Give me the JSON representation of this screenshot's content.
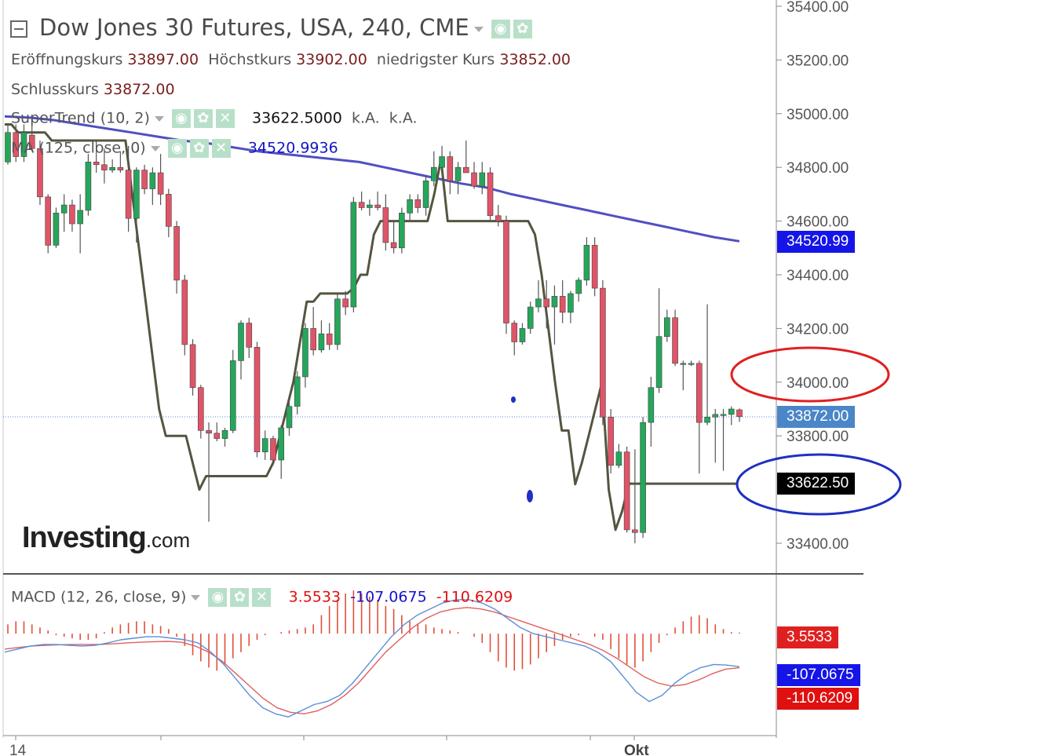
{
  "header": {
    "title": "Dow Jones 30 Futures, USA, 240, CME",
    "ohlc": {
      "open_label": "Eröffnungskurs",
      "open_value": "33897.00",
      "high_label": "Höchstkurs",
      "high_value": "33902.00",
      "low_label": "niedrigster Kurs",
      "low_value": "33852.00",
      "close_label": "Schlusskurs",
      "close_value": "33872.00"
    },
    "supertrend": {
      "label": "SuperTrend (10, 2)",
      "value": "33622.5000",
      "extra1": "k.A.",
      "extra2": "k.A."
    },
    "ma": {
      "label": "MA (125, close, 0)",
      "value": "34520.9936"
    },
    "macd": {
      "label": "MACD (12, 26, close, 9)",
      "hist": "3.5533",
      "macd": "-107.0675",
      "signal": "-110.6209"
    }
  },
  "logo": {
    "main": "Investing",
    "suffix": ".com"
  },
  "price_tags": {
    "ma": "34520.99",
    "close": "33872.00",
    "supertrend": "33622.50",
    "hist": "3.5533",
    "macd": "-107.0675",
    "signal": "-110.6209"
  },
  "colors": {
    "up": "#26a65b",
    "down": "#e05468",
    "ma": "#5050c0",
    "supertrend": "#555540",
    "macd_line": "#5b8fd8",
    "signal_line": "#e06060",
    "hist": "#e05038",
    "close_tag": "#4a86c8",
    "ma_tag": "#1515e8",
    "st_tag": "#000000",
    "hist_tag": "#e02020",
    "macd_tag": "#1515e8",
    "signal_tag": "#e01010",
    "annot_red": "#e02020",
    "annot_blue": "#2030c0"
  },
  "chart_data": [
    {
      "type": "candlestick",
      "ylim": [
        33300,
        35400
      ],
      "yticks": [
        "35400.00",
        "35200.00",
        "35000.00",
        "34800.00",
        "34600.00",
        "34400.00",
        "34200.00",
        "34000.00",
        "33800.00",
        "33400.00"
      ],
      "xtick_labels": [
        "14",
        "Okt"
      ],
      "candles": [
        {
          "o": 34820,
          "h": 34960,
          "l": 34810,
          "c": 34930
        },
        {
          "o": 34930,
          "h": 34960,
          "l": 34820,
          "c": 34840
        },
        {
          "o": 34840,
          "h": 34960,
          "l": 34820,
          "c": 34930
        },
        {
          "o": 34920,
          "h": 34980,
          "l": 34860,
          "c": 34870
        },
        {
          "o": 34870,
          "h": 34900,
          "l": 34660,
          "c": 34690
        },
        {
          "o": 34690,
          "h": 34700,
          "l": 34480,
          "c": 34510
        },
        {
          "o": 34510,
          "h": 34650,
          "l": 34500,
          "c": 34630
        },
        {
          "o": 34630,
          "h": 34700,
          "l": 34560,
          "c": 34660
        },
        {
          "o": 34660,
          "h": 34680,
          "l": 34560,
          "c": 34590
        },
        {
          "o": 34590,
          "h": 34700,
          "l": 34480,
          "c": 34640
        },
        {
          "o": 34640,
          "h": 34850,
          "l": 34620,
          "c": 34820
        },
        {
          "o": 34820,
          "h": 34900,
          "l": 34780,
          "c": 34810
        },
        {
          "o": 34810,
          "h": 34870,
          "l": 34740,
          "c": 34790
        },
        {
          "o": 34790,
          "h": 34830,
          "l": 34780,
          "c": 34800
        },
        {
          "o": 34800,
          "h": 34860,
          "l": 34780,
          "c": 34790
        },
        {
          "o": 34790,
          "h": 34880,
          "l": 34560,
          "c": 34610
        },
        {
          "o": 34610,
          "h": 34800,
          "l": 34520,
          "c": 34790
        },
        {
          "o": 34790,
          "h": 34810,
          "l": 34700,
          "c": 34720
        },
        {
          "o": 34720,
          "h": 34800,
          "l": 34660,
          "c": 34780
        },
        {
          "o": 34780,
          "h": 34850,
          "l": 34660,
          "c": 34700
        },
        {
          "o": 34700,
          "h": 34720,
          "l": 34540,
          "c": 34580
        },
        {
          "o": 34580,
          "h": 34600,
          "l": 34330,
          "c": 34380
        },
        {
          "o": 34380,
          "h": 34400,
          "l": 34100,
          "c": 34140
        },
        {
          "o": 34140,
          "h": 34160,
          "l": 33950,
          "c": 33980
        },
        {
          "o": 33980,
          "h": 33990,
          "l": 33790,
          "c": 33820
        },
        {
          "o": 33820,
          "h": 33850,
          "l": 33480,
          "c": 33810
        },
        {
          "o": 33810,
          "h": 33850,
          "l": 33780,
          "c": 33790
        },
        {
          "o": 33790,
          "h": 33830,
          "l": 33760,
          "c": 33820
        },
        {
          "o": 33820,
          "h": 34120,
          "l": 33810,
          "c": 34080
        },
        {
          "o": 34080,
          "h": 34230,
          "l": 34010,
          "c": 34220
        },
        {
          "o": 34220,
          "h": 34240,
          "l": 34090,
          "c": 34130
        },
        {
          "o": 34130,
          "h": 34150,
          "l": 33720,
          "c": 33740
        },
        {
          "o": 33740,
          "h": 33820,
          "l": 33710,
          "c": 33790
        },
        {
          "o": 33790,
          "h": 33800,
          "l": 33690,
          "c": 33710
        },
        {
          "o": 33710,
          "h": 33840,
          "l": 33640,
          "c": 33830
        },
        {
          "o": 33830,
          "h": 33930,
          "l": 33800,
          "c": 33910
        },
        {
          "o": 33910,
          "h": 34040,
          "l": 33880,
          "c": 34020
        },
        {
          "o": 34020,
          "h": 34220,
          "l": 33980,
          "c": 34200
        },
        {
          "o": 34200,
          "h": 34280,
          "l": 34100,
          "c": 34120
        },
        {
          "o": 34120,
          "h": 34230,
          "l": 34110,
          "c": 34180
        },
        {
          "o": 34180,
          "h": 34220,
          "l": 34120,
          "c": 34140
        },
        {
          "o": 34140,
          "h": 34330,
          "l": 34120,
          "c": 34310
        },
        {
          "o": 34310,
          "h": 34340,
          "l": 34250,
          "c": 34280
        },
        {
          "o": 34280,
          "h": 34690,
          "l": 34260,
          "c": 34670
        },
        {
          "o": 34670,
          "h": 34710,
          "l": 34640,
          "c": 34650
        },
        {
          "o": 34650,
          "h": 34680,
          "l": 34620,
          "c": 34660
        },
        {
          "o": 34660,
          "h": 34710,
          "l": 34640,
          "c": 34650
        },
        {
          "o": 34650,
          "h": 34700,
          "l": 34490,
          "c": 34520
        },
        {
          "o": 34520,
          "h": 34600,
          "l": 34480,
          "c": 34500
        },
        {
          "o": 34500,
          "h": 34650,
          "l": 34480,
          "c": 34630
        },
        {
          "o": 34630,
          "h": 34700,
          "l": 34600,
          "c": 34680
        },
        {
          "o": 34680,
          "h": 34700,
          "l": 34630,
          "c": 34650
        },
        {
          "o": 34650,
          "h": 34770,
          "l": 34620,
          "c": 34750
        },
        {
          "o": 34750,
          "h": 34860,
          "l": 34730,
          "c": 34800
        },
        {
          "o": 34800,
          "h": 34880,
          "l": 34790,
          "c": 34840
        },
        {
          "o": 34840,
          "h": 34860,
          "l": 34700,
          "c": 34750
        },
        {
          "o": 34750,
          "h": 34820,
          "l": 34700,
          "c": 34800
        },
        {
          "o": 34800,
          "h": 34900,
          "l": 34780,
          "c": 34780
        },
        {
          "o": 34780,
          "h": 34820,
          "l": 34720,
          "c": 34730
        },
        {
          "o": 34730,
          "h": 34820,
          "l": 34700,
          "c": 34780
        },
        {
          "o": 34780,
          "h": 34800,
          "l": 34600,
          "c": 34620
        },
        {
          "o": 34620,
          "h": 34660,
          "l": 34580,
          "c": 34600
        },
        {
          "o": 34600,
          "h": 34620,
          "l": 34180,
          "c": 34220
        },
        {
          "o": 34220,
          "h": 34230,
          "l": 34100,
          "c": 34150
        },
        {
          "o": 34150,
          "h": 34220,
          "l": 34140,
          "c": 34200
        },
        {
          "o": 34200,
          "h": 34300,
          "l": 34180,
          "c": 34280
        },
        {
          "o": 34280,
          "h": 34380,
          "l": 34260,
          "c": 34310
        },
        {
          "o": 34310,
          "h": 34380,
          "l": 34200,
          "c": 34280
        },
        {
          "o": 34280,
          "h": 34360,
          "l": 34140,
          "c": 34320
        },
        {
          "o": 34320,
          "h": 34380,
          "l": 34220,
          "c": 34260
        },
        {
          "o": 34260,
          "h": 34340,
          "l": 34220,
          "c": 34330
        },
        {
          "o": 34330,
          "h": 34390,
          "l": 34300,
          "c": 34380
        },
        {
          "o": 34380,
          "h": 34540,
          "l": 34360,
          "c": 34510
        },
        {
          "o": 34510,
          "h": 34540,
          "l": 34320,
          "c": 34350
        },
        {
          "o": 34350,
          "h": 34380,
          "l": 33840,
          "c": 33870
        },
        {
          "o": 33870,
          "h": 33900,
          "l": 33660,
          "c": 33690
        },
        {
          "o": 33690,
          "h": 33770,
          "l": 33680,
          "c": 33740
        },
        {
          "o": 33740,
          "h": 33760,
          "l": 33440,
          "c": 33450
        },
        {
          "o": 33450,
          "h": 33750,
          "l": 33400,
          "c": 33440
        },
        {
          "o": 33440,
          "h": 33870,
          "l": 33420,
          "c": 33850
        },
        {
          "o": 33850,
          "h": 34020,
          "l": 33760,
          "c": 33980
        },
        {
          "o": 33980,
          "h": 34350,
          "l": 33960,
          "c": 34170
        },
        {
          "o": 34170,
          "h": 34270,
          "l": 34150,
          "c": 34240
        },
        {
          "o": 34240,
          "h": 34270,
          "l": 34060,
          "c": 34070
        },
        {
          "o": 34070,
          "h": 34080,
          "l": 33970,
          "c": 34070
        },
        {
          "o": 34070,
          "h": 34080,
          "l": 34060,
          "c": 34070
        },
        {
          "o": 34070,
          "h": 34080,
          "l": 33660,
          "c": 33850
        },
        {
          "o": 33850,
          "h": 34290,
          "l": 33840,
          "c": 33870
        },
        {
          "o": 33870,
          "h": 33900,
          "l": 33700,
          "c": 33880
        },
        {
          "o": 33880,
          "h": 33900,
          "l": 33670,
          "c": 33880
        },
        {
          "o": 33880,
          "h": 33910,
          "l": 33840,
          "c": 33900
        },
        {
          "o": 33897,
          "h": 33902,
          "l": 33852,
          "c": 33872
        }
      ],
      "ma": [
        34990,
        34985,
        34975,
        34960,
        34945,
        34930,
        34915,
        34900,
        34890,
        34875,
        34860,
        34850,
        34840,
        34830,
        34820,
        34800,
        34780,
        34760,
        34740,
        34725,
        34700,
        34680,
        34660,
        34640,
        34620,
        34600,
        34580,
        34560,
        34540,
        34525
      ],
      "supertrend": [
        34960,
        34960,
        34930,
        34930,
        34930,
        34930,
        34930,
        34900,
        34900,
        34900,
        34900,
        34900,
        34900,
        34900,
        34900,
        34900,
        34900,
        34900,
        34900,
        34700,
        34500,
        34300,
        34100,
        33900,
        33800,
        33800,
        33800,
        33800,
        33700,
        33600,
        33650,
        33650,
        33650,
        33650,
        33650,
        33650,
        33650,
        33650,
        33650,
        33650,
        33700,
        33800,
        33900,
        34000,
        34150,
        34300,
        34300,
        34330,
        34330,
        34330,
        34330,
        34330,
        34350,
        34400,
        34400,
        34550,
        34600,
        34600,
        34600,
        34600,
        34600,
        34600,
        34600,
        34600,
        34700,
        34830,
        34600,
        34600,
        34600,
        34600,
        34600,
        34600,
        34600,
        34600,
        34600,
        34600,
        34600,
        34600,
        34600,
        34550,
        34400,
        34200,
        34000,
        33820,
        33820,
        33620,
        33700,
        33800,
        33900,
        34000,
        33600,
        33450,
        33520,
        33622,
        33622,
        33622,
        33622,
        33622,
        33622,
        33622,
        33622,
        33622,
        33622,
        33622,
        33622,
        33622,
        33622,
        33622,
        33622,
        33622
      ]
    },
    {
      "type": "macd",
      "ylim": [
        -300,
        200
      ],
      "histogram": [
        30,
        40,
        40,
        30,
        20,
        10,
        -5,
        -10,
        -15,
        -20,
        -20,
        -15,
        5,
        20,
        30,
        35,
        40,
        40,
        30,
        25,
        15,
        -10,
        -40,
        -70,
        -90,
        -110,
        -120,
        -100,
        -80,
        -60,
        -40,
        -20,
        -5,
        0,
        5,
        10,
        15,
        20,
        30,
        60,
        90,
        110,
        130,
        140,
        130,
        120,
        110,
        90,
        80,
        60,
        40,
        30,
        30,
        20,
        15,
        10,
        5,
        0,
        -10,
        -30,
        -60,
        -90,
        -110,
        -120,
        -115,
        -100,
        -80,
        -60,
        -40,
        -20,
        -10,
        -5,
        0,
        -10,
        -20,
        -50,
        -80,
        -100,
        -110,
        -90,
        -60,
        -30,
        -5,
        20,
        40,
        55,
        60,
        50,
        30,
        15,
        5,
        3.5533
      ],
      "macd": [
        -60,
        -50,
        -40,
        -35,
        -35,
        -38,
        -40,
        -38,
        -30,
        -20,
        -15,
        -10,
        -10,
        -15,
        -20,
        -30,
        -60,
        -100,
        -150,
        -200,
        -240,
        -260,
        -270,
        -250,
        -230,
        -220,
        -200,
        -160,
        -110,
        -60,
        -10,
        30,
        60,
        80,
        100,
        110,
        110,
        100,
        80,
        50,
        20,
        0,
        -10,
        -20,
        -30,
        -40,
        -60,
        -90,
        -140,
        -190,
        -220,
        -200,
        -160,
        -130,
        -110,
        -100,
        -102,
        -107.0675
      ],
      "signal": [
        -50,
        -45,
        -40,
        -38,
        -36,
        -35,
        -35,
        -35,
        -33,
        -30,
        -28,
        -26,
        -25,
        -28,
        -40,
        -60,
        -90,
        -130,
        -170,
        -210,
        -240,
        -255,
        -260,
        -250,
        -230,
        -200,
        -160,
        -110,
        -60,
        -20,
        20,
        50,
        70,
        80,
        85,
        80,
        70,
        55,
        40,
        25,
        10,
        -5,
        -20,
        -35,
        -55,
        -80,
        -110,
        -140,
        -160,
        -170,
        -165,
        -150,
        -130,
        -115,
        -110.6209
      ]
    }
  ]
}
